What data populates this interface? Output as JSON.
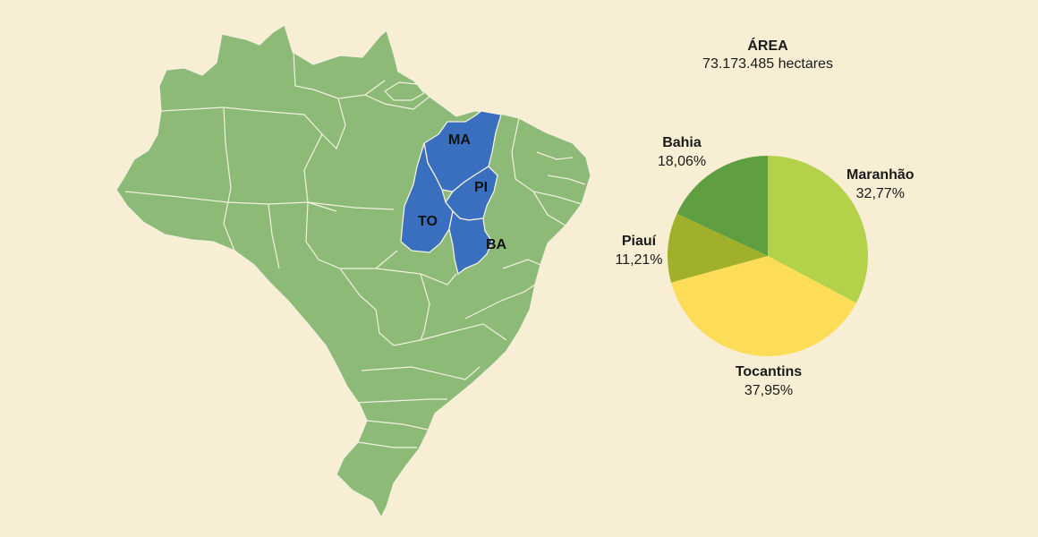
{
  "map": {
    "highlighted_states": [
      "MA",
      "PI",
      "TO",
      "BA"
    ],
    "colors": {
      "background": "#f8eed4",
      "country": "#8dbb77",
      "highlight": "#3a6fbf",
      "border": "#f3f0e0"
    }
  },
  "chart_data": {
    "type": "pie",
    "title": "ÁREA",
    "subtitle": "73.173.485 hectares",
    "slices": [
      {
        "name": "Maranhão",
        "value": 32.77,
        "label": "32,77%",
        "color": "#b3d24a"
      },
      {
        "name": "Tocantins",
        "value": 37.95,
        "label": "37,95%",
        "color": "#fddc57"
      },
      {
        "name": "Piauí",
        "value": 11.21,
        "label": "11,21%",
        "color": "#a1b02a"
      },
      {
        "name": "Bahia",
        "value": 18.06,
        "label": "18,06%",
        "color": "#5f9f42"
      }
    ]
  }
}
